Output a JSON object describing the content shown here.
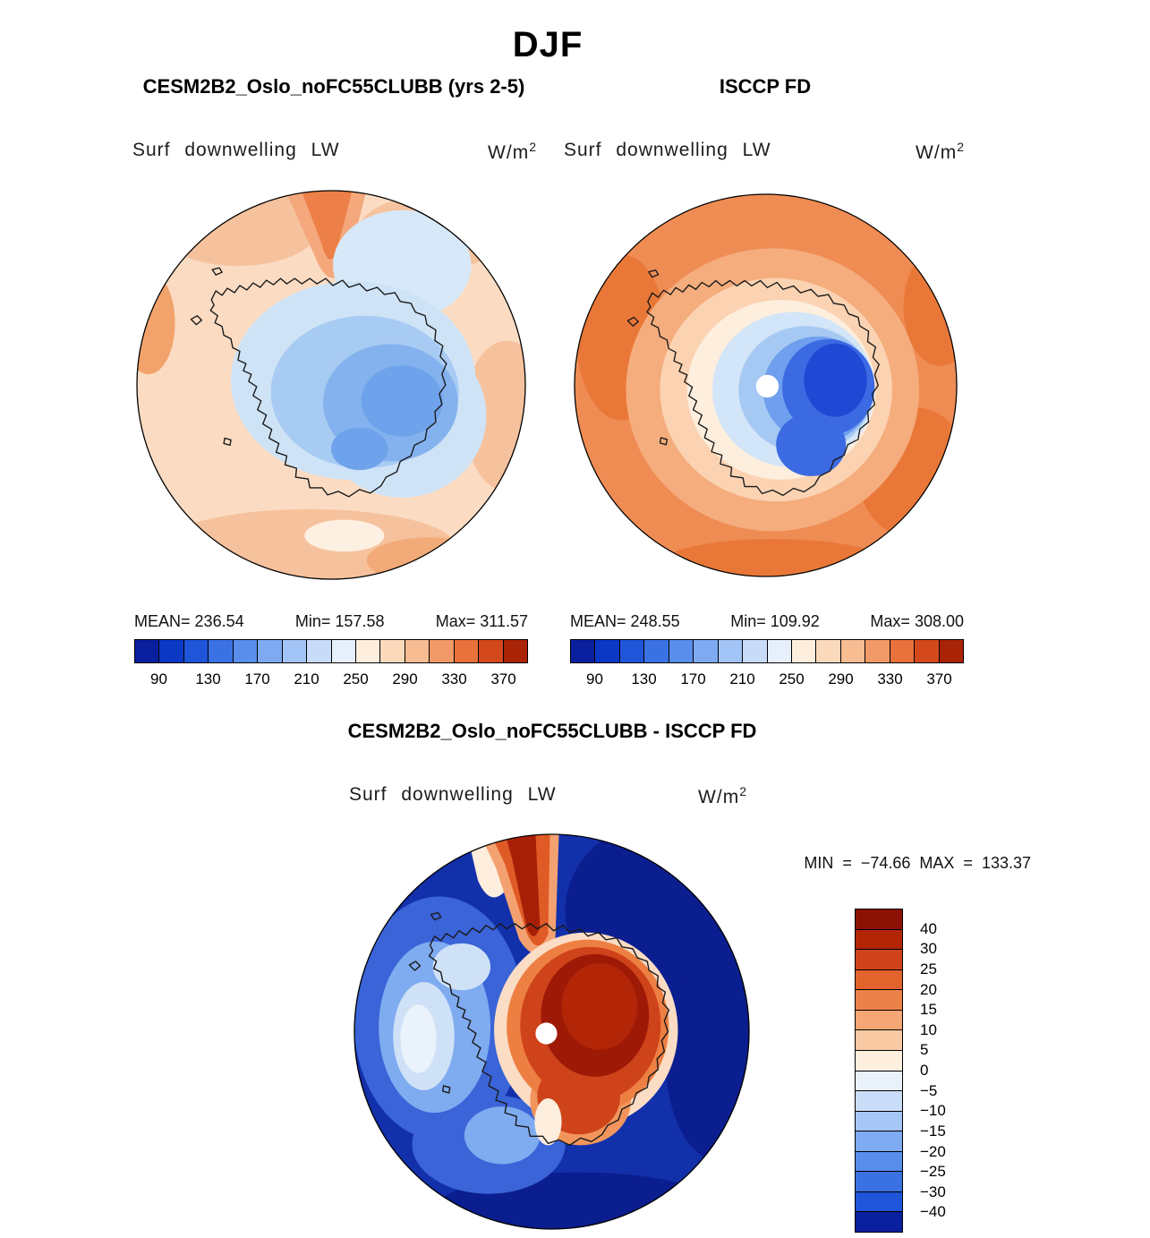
{
  "title": "DJF",
  "panels": {
    "model": {
      "title": "CESM2B2_Oslo_noFC55CLUBB (yrs 2-5)",
      "field": "Surf downwelling LW",
      "units_base": "W/m",
      "units_exp": "2",
      "mean_label": "MEAN=",
      "mean": "236.54",
      "min_label": "Min=",
      "min": "157.58",
      "max_label": "Max=",
      "max": "311.57"
    },
    "obs": {
      "title": "ISCCP FD",
      "field": "Surf downwelling LW",
      "units_base": "W/m",
      "units_exp": "2",
      "mean_label": "MEAN=",
      "mean": "248.55",
      "min_label": "Min=",
      "min": "109.92",
      "max_label": "Max=",
      "max": "308.00"
    },
    "diff": {
      "title": "CESM2B2_Oslo_noFC55CLUBB - ISCCP FD",
      "field": "Surf downwelling LW",
      "units_base": "W/m",
      "units_exp": "2",
      "stats": "MIN = −74.66 MAX = 133.37"
    }
  },
  "colorbar_absolute": {
    "ticks": [
      "90",
      "130",
      "170",
      "210",
      "250",
      "290",
      "330",
      "370"
    ],
    "colors": [
      "#0a1f9e",
      "#0c38c6",
      "#1e55d9",
      "#3b72e3",
      "#5a8eec",
      "#7eaaf2",
      "#a3c4f6",
      "#c8dcf9",
      "#e6effb",
      "#fdeedd",
      "#fbd9bb",
      "#f7bc92",
      "#f19a67",
      "#e9713c",
      "#d4491c",
      "#a92306"
    ]
  },
  "colorbar_diff": {
    "ticks": [
      "40",
      "30",
      "25",
      "20",
      "15",
      "10",
      "5",
      "0",
      "−5",
      "−10",
      "−15",
      "−20",
      "−25",
      "−30",
      "−40"
    ],
    "colors": [
      "#8d1206",
      "#b32507",
      "#cf431a",
      "#e2632c",
      "#ec8249",
      "#f4a675",
      "#f9c9a4",
      "#fdeedd",
      "#e9f1fb",
      "#c9ddf8",
      "#a5c6f6",
      "#7fabf2",
      "#5a8eec",
      "#3b72e3",
      "#1e55d9",
      "#0a1f9e"
    ]
  },
  "chart_data": [
    {
      "type": "heatmap",
      "panel": "top-left",
      "season": "DJF",
      "title": "CESM2B2_Oslo_noFC55CLUBB (yrs 2-5)",
      "variable": "Surf downwelling LW",
      "units": "W/m²",
      "projection": "south-polar-stereographic",
      "stats": {
        "mean": 236.54,
        "min": 157.58,
        "max": 311.57
      },
      "colorbar_ticks": [
        90,
        130,
        170,
        210,
        250,
        290,
        330,
        370
      ],
      "palette": "blue-white-red",
      "legend_position": "bottom"
    },
    {
      "type": "heatmap",
      "panel": "top-right",
      "season": "DJF",
      "title": "ISCCP FD",
      "variable": "Surf downwelling LW",
      "units": "W/m²",
      "projection": "south-polar-stereographic",
      "stats": {
        "mean": 248.55,
        "min": 109.92,
        "max": 308.0
      },
      "colorbar_ticks": [
        90,
        130,
        170,
        210,
        250,
        290,
        330,
        370
      ],
      "palette": "blue-white-red",
      "legend_position": "bottom"
    },
    {
      "type": "heatmap",
      "panel": "bottom",
      "season": "DJF",
      "title": "CESM2B2_Oslo_noFC55CLUBB - ISCCP FD",
      "variable": "Surf downwelling LW",
      "units": "W/m²",
      "projection": "south-polar-stereographic",
      "stats": {
        "min": -74.66,
        "max": 133.37
      },
      "colorbar_ticks": [
        40,
        30,
        25,
        20,
        15,
        10,
        5,
        0,
        -5,
        -10,
        -15,
        -20,
        -25,
        -30,
        -40
      ],
      "palette": "blue-white-red",
      "legend_position": "right"
    }
  ]
}
